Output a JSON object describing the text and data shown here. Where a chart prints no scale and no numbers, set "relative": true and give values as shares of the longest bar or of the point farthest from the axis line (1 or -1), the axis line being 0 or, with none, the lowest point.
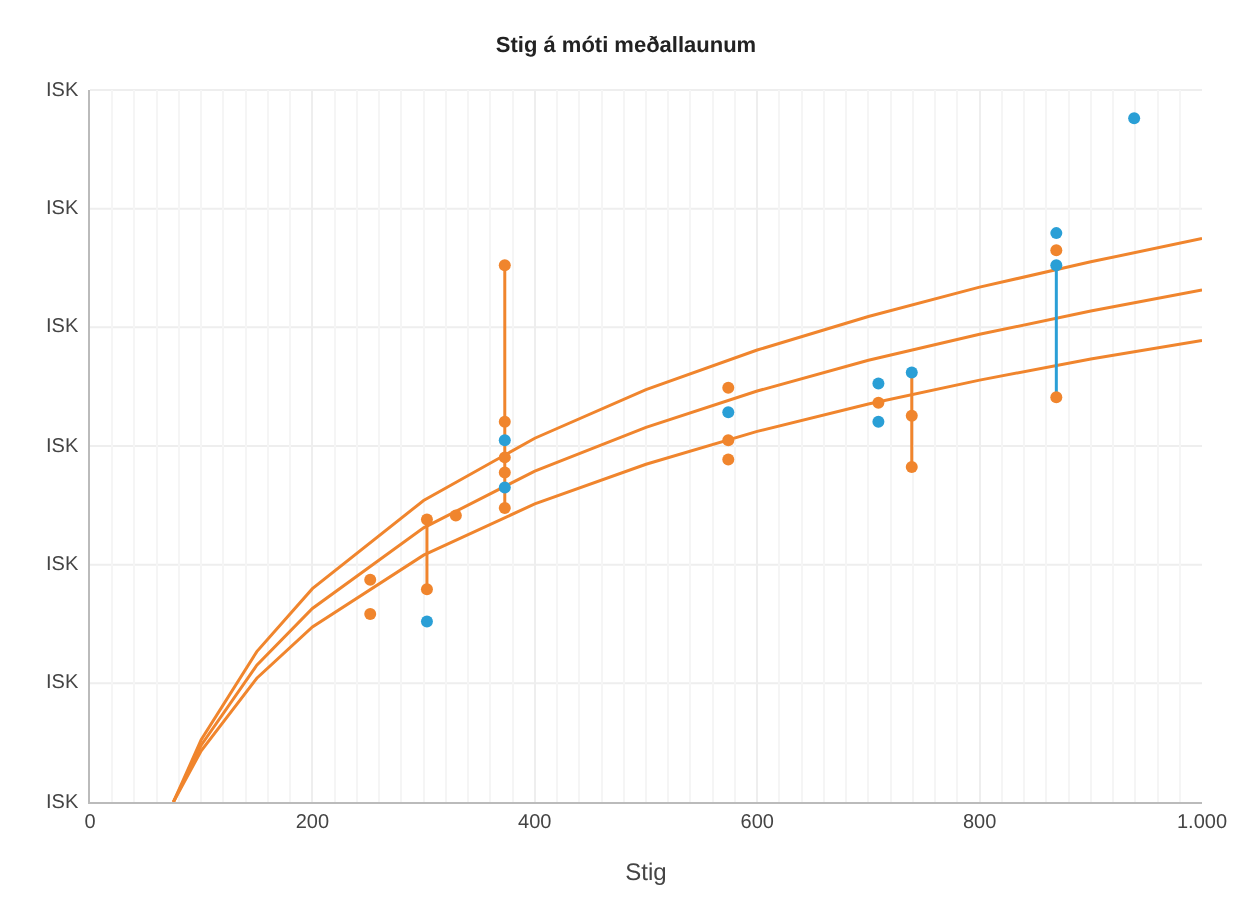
{
  "chart_data": {
    "type": "scatter",
    "title": "Stig á móti meðallaunum",
    "xlabel": "Stig",
    "relative": true,
    "xlim": [
      0,
      1000
    ],
    "xticks": [
      0,
      200,
      400,
      600,
      800,
      {
        "value": 1000,
        "label": "1.000"
      }
    ],
    "annotations": [
      "ISK",
      "ISK",
      "ISK",
      "ISK",
      "ISK",
      "ISK",
      "ISK"
    ],
    "grid": true,
    "series": [
      {
        "type": "line",
        "color": "#f0852d",
        "x": [
          75,
          100,
          150,
          200,
          300,
          400,
          500,
          600,
          700,
          800,
          900,
          1000
        ],
        "values": [
          0,
          0.091,
          0.22,
          0.312,
          0.441,
          0.532,
          0.603,
          0.661,
          0.71,
          0.753,
          0.79,
          0.824
        ]
      },
      {
        "type": "line",
        "color": "#f0852d",
        "x": [
          75,
          100,
          150,
          200,
          300,
          400,
          500,
          600,
          700,
          800,
          900,
          1000
        ],
        "values": [
          0,
          0.083,
          0.2,
          0.283,
          0.401,
          0.484,
          0.548,
          0.601,
          0.646,
          0.684,
          0.718,
          0.749
        ]
      },
      {
        "type": "line",
        "color": "#f0852d",
        "x": [
          75,
          100,
          150,
          200,
          300,
          400,
          500,
          600,
          700,
          800,
          900,
          1000
        ],
        "values": [
          0,
          0.075,
          0.181,
          0.256,
          0.361,
          0.436,
          0.494,
          0.542,
          0.582,
          0.617,
          0.648,
          0.675
        ]
      },
      {
        "type": "line",
        "color": "#f0852d",
        "x": [
          373,
          373
        ],
        "values": [
          0.785,
          0.43
        ]
      },
      {
        "type": "line",
        "color": "#f0852d",
        "x": [
          303,
          303
        ],
        "values": [
          0.413,
          0.311
        ]
      },
      {
        "type": "line",
        "color": "#f0852d",
        "x": [
          739,
          739
        ],
        "values": [
          0.628,
          0.49
        ]
      },
      {
        "type": "line",
        "color": "#2a9fd6",
        "x": [
          869,
          869
        ],
        "values": [
          0.785,
          0.592
        ]
      },
      {
        "color": "#f0852d",
        "marker": "circle",
        "x": [
          252,
          252,
          303,
          303,
          329,
          373,
          373,
          373,
          373,
          373,
          574,
          574,
          574,
          709,
          739,
          739,
          869,
          869
        ],
        "values": [
          0.325,
          0.275,
          0.413,
          0.311,
          0.419,
          0.785,
          0.556,
          0.504,
          0.482,
          0.43,
          0.606,
          0.529,
          0.501,
          0.584,
          0.565,
          0.49,
          0.807,
          0.592
        ]
      },
      {
        "color": "#2a9fd6",
        "marker": "circle",
        "x": [
          303,
          373,
          373,
          574,
          709,
          709,
          739,
          869,
          869,
          939
        ],
        "values": [
          0.264,
          0.529,
          0.46,
          0.57,
          0.612,
          0.556,
          0.628,
          0.832,
          0.785,
          1.0
        ]
      }
    ]
  }
}
